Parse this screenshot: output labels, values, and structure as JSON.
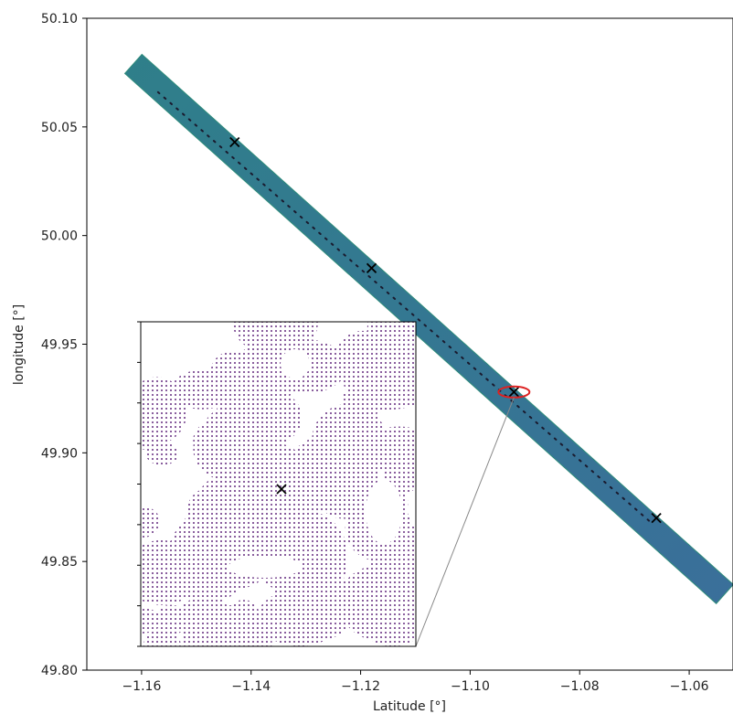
{
  "chart_data": {
    "type": "scatter",
    "xlabel": "Latitude [°]",
    "ylabel": "longitude [°]",
    "xlim": [
      -1.17,
      -1.052
    ],
    "ylim": [
      49.8,
      50.1
    ],
    "x_ticks": [
      -1.16,
      -1.14,
      -1.12,
      -1.1,
      -1.08,
      -1.06
    ],
    "x_tick_labels": [
      "−1.16",
      "−1.14",
      "−1.12",
      "−1.10",
      "−1.08",
      "−1.06"
    ],
    "y_ticks": [
      49.8,
      49.85,
      49.9,
      49.95,
      50.0,
      50.05,
      50.1
    ],
    "y_tick_labels": [
      "49.80",
      "49.85",
      "49.90",
      "49.95",
      "50.00",
      "50.05",
      "50.10"
    ],
    "grid": false,
    "swath": {
      "centerline": [
        [
          -1.1615,
          50.079
        ],
        [
          -1.0535,
          49.835
        ]
      ],
      "color_start": "#2f7f8a",
      "color_end": "#3a6f9a",
      "edge_color": "#2e8b7a"
    },
    "track_line": {
      "x": [
        -1.157,
        -1.067
      ],
      "y": [
        50.066,
        49.868
      ],
      "style": "dotted",
      "color": "#1a1a2e"
    },
    "markers": {
      "symbol": "x",
      "color": "#000000",
      "points": [
        {
          "x": -1.143,
          "y": 50.043
        },
        {
          "x": -1.118,
          "y": 49.985
        },
        {
          "x": -1.092,
          "y": 49.928
        },
        {
          "x": -1.066,
          "y": 49.87
        }
      ]
    },
    "highlight": {
      "x": -1.092,
      "y": 49.928,
      "color": "#dd2222"
    },
    "inset": {
      "point_color": "#8a5f9e",
      "marker": {
        "symbol": "x",
        "color": "#000000"
      }
    }
  }
}
